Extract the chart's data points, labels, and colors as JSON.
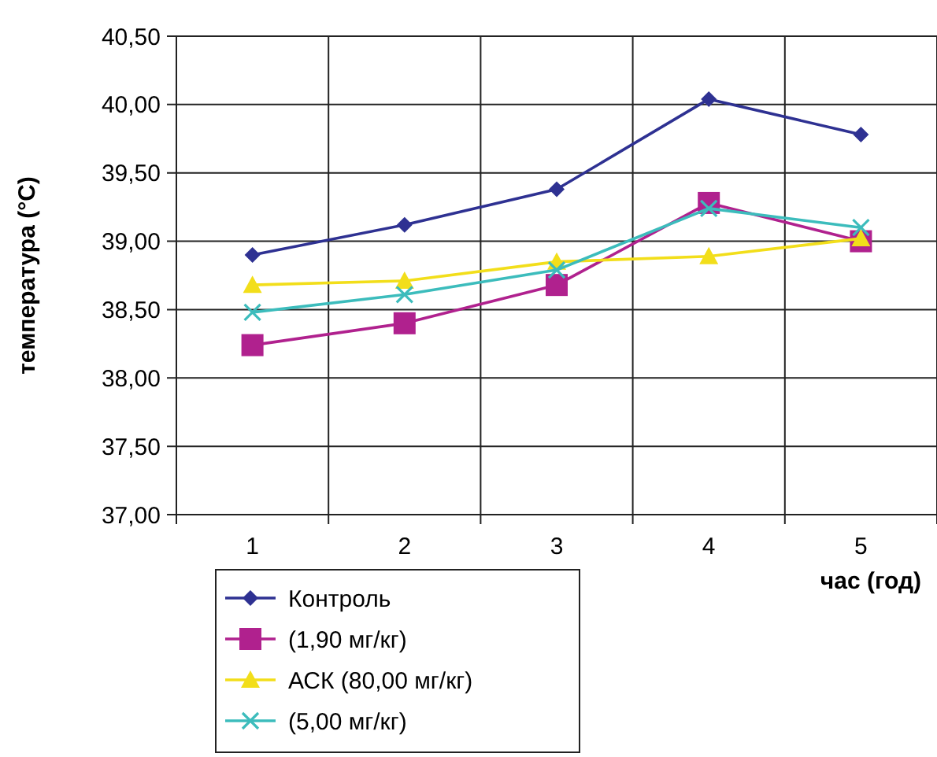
{
  "chart_data": {
    "type": "line",
    "xlabel": "час (год)",
    "ylabel": "температура (°C)",
    "categories": [
      "1",
      "2",
      "3",
      "4",
      "5"
    ],
    "ylim": [
      37,
      40.5
    ],
    "yticks": [
      {
        "value": 37,
        "label": "37,00"
      },
      {
        "value": 37.5,
        "label": "37,50"
      },
      {
        "value": 38,
        "label": "38,00"
      },
      {
        "value": 38.5,
        "label": "38,50"
      },
      {
        "value": 39,
        "label": "39,00"
      },
      {
        "value": 39.5,
        "label": "39,50"
      },
      {
        "value": 40,
        "label": "40,00"
      },
      {
        "value": 40.5,
        "label": "40,50"
      }
    ],
    "grid": true,
    "legend": "bottom",
    "series": [
      {
        "name": "Контроль",
        "color": "#2e3192",
        "marker": "diamond",
        "values": [
          38.9,
          39.12,
          39.38,
          40.04,
          39.78
        ]
      },
      {
        "name": "(1,90 мг/кг)",
        "color": "#b0218e",
        "marker": "square",
        "values": [
          38.24,
          38.4,
          38.68,
          39.28,
          39.0
        ]
      },
      {
        "name": "АСК (80,00 мг/кг)",
        "color": "#f2de1a",
        "marker": "triangle",
        "values": [
          38.68,
          38.71,
          38.85,
          38.89,
          39.02
        ]
      },
      {
        "name": "(5,00 мг/кг)",
        "color": "#3cbcbc",
        "marker": "cross",
        "values": [
          38.48,
          38.61,
          38.79,
          39.24,
          39.1
        ]
      }
    ]
  }
}
